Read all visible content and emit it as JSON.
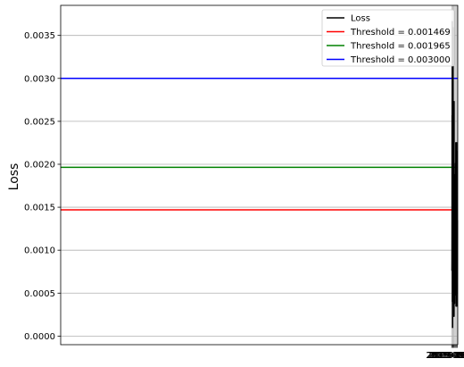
{
  "chart_data": {
    "type": "line",
    "xlabel": "",
    "ylabel": "Loss",
    "grid": true,
    "legend_position": "top-right",
    "xlim": [
      "2018-08-30T21:40",
      "2019-09-05T14:30"
    ],
    "ylim": [
      -0.0001,
      0.00385
    ],
    "x_ticks": [
      "2019-08-31",
      "2019-09-01",
      "2019-09-02",
      "2019-09-03",
      "2019-09-04",
      "2019-09-05"
    ],
    "y_ticks": [
      "0.0000",
      "0.0005",
      "0.0010",
      "0.0015",
      "0.0020",
      "0.0025",
      "0.0030",
      "0.0035"
    ],
    "series": [
      {
        "name": "Loss",
        "color": "#000000",
        "x": [
          "2019-08-31T04:00",
          "2019-08-31T05:00",
          "2019-08-31T07:00",
          "2019-08-31T08:00",
          "2019-08-31T09:00",
          "2019-08-31T09:40",
          "2019-08-31T10:00",
          "2019-08-31T10:40",
          "2019-08-31T11:00",
          "2019-08-31T12:00",
          "2019-08-31T12:30",
          "2019-08-31T13:00",
          "2019-08-31T14:00",
          "2019-08-31T15:00",
          "2019-08-31T15:30",
          "2019-08-31T16:00",
          "2019-08-31T16:40",
          "2019-08-31T17:00",
          "2019-08-31T18:00",
          "2019-08-31T19:00",
          "2019-08-31T20:00",
          "2019-08-31T21:00",
          "2019-08-31T22:00",
          "2019-08-31T23:00",
          "2019-09-01T00:00",
          "2019-09-01T00:30",
          "2019-09-01T02:00",
          "2019-09-01T03:00",
          "2019-09-01T04:00",
          "2019-09-01T05:00",
          "2019-09-01T05:30",
          "2019-09-01T06:00",
          "2019-09-01T07:00",
          "2019-09-01T08:00",
          "2019-09-01T10:00",
          "2019-09-01T10:30",
          "2019-09-01T11:00",
          "2019-09-01T12:00",
          "2019-09-01T13:00",
          "2019-09-01T14:00",
          "2019-09-01T15:00",
          "2019-09-01T16:00",
          "2019-09-01T17:00",
          "2019-09-01T18:00",
          "2019-09-01T19:00",
          "2019-09-01T20:00",
          "2019-09-01T21:00",
          "2019-09-01T22:00",
          "2019-09-01T23:00",
          "2019-09-02T00:00",
          "2019-09-02T01:00",
          "2019-09-02T02:00",
          "2019-09-02T03:00",
          "2019-09-02T04:00",
          "2019-09-02T05:00",
          "2019-09-02T06:00",
          "2019-09-02T07:00",
          "2019-09-02T08:00",
          "2019-09-02T09:00",
          "2019-09-02T11:00",
          "2019-09-02T12:00",
          "2019-09-02T13:00",
          "2019-09-02T15:00",
          "2019-09-02T17:00",
          "2019-09-02T18:00",
          "2019-09-02T19:00",
          "2019-09-02T20:00",
          "2019-09-02T21:00",
          "2019-09-02T22:00",
          "2019-09-02T23:00",
          "2019-09-03T00:00",
          "2019-09-03T01:00",
          "2019-09-03T02:00",
          "2019-09-03T03:00",
          "2019-09-03T04:00",
          "2019-09-03T05:00",
          "2019-09-03T06:00",
          "2019-09-03T07:00",
          "2019-09-03T08:00",
          "2019-09-03T09:00",
          "2019-09-03T10:00",
          "2019-09-03T11:00",
          "2019-09-03T12:00",
          "2019-09-03T13:00",
          "2019-09-03T14:00",
          "2019-09-03T15:00",
          "2019-09-03T16:00",
          "2019-09-03T17:00",
          "2019-09-03T18:00",
          "2019-09-03T19:00",
          "2019-09-03T20:00",
          "2019-09-03T21:00",
          "2019-09-03T22:00",
          "2019-09-03T23:00",
          "2019-09-04T00:00",
          "2019-09-04T01:00",
          "2019-09-04T06:00",
          "2019-09-04T07:00",
          "2019-09-04T08:00",
          "2019-09-04T09:00",
          "2019-09-04T10:00",
          "2019-09-04T11:00",
          "2019-09-04T12:00",
          "2019-09-04T13:00",
          "2019-09-04T14:00",
          "2019-09-04T15:00",
          "2019-09-04T16:00",
          "2019-09-04T17:00",
          "2019-09-04T18:00",
          "2019-09-04T19:00",
          "2019-09-04T20:00",
          "2019-09-04T21:00",
          "2019-09-04T22:00",
          "2019-09-04T23:00",
          "2019-09-05T00:00",
          "2019-09-05T04:00",
          "2019-09-05T06:00"
        ],
        "y": [
          0.00076,
          0.00085,
          0.00135,
          0.00257,
          0.00215,
          0.0012,
          0.00195,
          0.00277,
          0.00188,
          0.00366,
          0.0028,
          0.002,
          0.0004,
          0.0004,
          0.00175,
          0.00095,
          0.0015,
          0.00165,
          0.0015,
          0.0001,
          0.00088,
          0.00103,
          0.0009,
          0.00045,
          0.0011,
          0.0016,
          0.0012,
          0.0014,
          0.00359,
          0.0026,
          0.0015,
          0.0007,
          0.0011,
          0.00098,
          0.00087,
          0.00087,
          0.00164,
          0.00122,
          0.0008,
          0.00065,
          0.001,
          0.00093,
          0.00145,
          0.00088,
          0.0012,
          0.00162,
          0.00175,
          0.00105,
          0.00115,
          0.0009,
          0.00095,
          0.00023,
          0.00273,
          0.00082,
          0.00088,
          0.00132,
          0.00118,
          0.0006,
          0.00148,
          0.00085,
          0.00095,
          0.0009,
          0.00038,
          0.00107,
          0.0009,
          0.00125,
          0.00148,
          0.00085,
          0.0008,
          0.00188,
          0.00182,
          0.00085,
          0.00125,
          0.00176,
          0.00115,
          0.00105,
          0.0014,
          0.0008,
          0.00048,
          0.00107,
          0.00048,
          0.00113,
          0.0012,
          0.00201,
          0.00185,
          0.0009,
          0.00135,
          0.00162,
          0.00092,
          0.00225,
          0.00105,
          0.00055,
          0.0013,
          0.00125,
          0.00035,
          0.00215,
          0.00075,
          0.00049,
          0.00081,
          0.00135,
          0.00201,
          0.00185,
          0.0009,
          0.00135,
          0.00162,
          0.00092,
          0.00225,
          0.00105,
          0.00055,
          0.0013,
          0.00125,
          0.00035,
          0.00215,
          0.00075,
          0.00049,
          0.00081,
          0.00135
        ]
      }
    ],
    "thresholds": [
      {
        "name": "Threshold = 0.001469",
        "value": 0.001469,
        "color": "#ff0000"
      },
      {
        "name": "Threshold = 0.001965",
        "value": 0.001965,
        "color": "#008000"
      },
      {
        "name": "Threshold = 0.003000",
        "value": 0.003,
        "color": "#0000ff"
      }
    ]
  }
}
